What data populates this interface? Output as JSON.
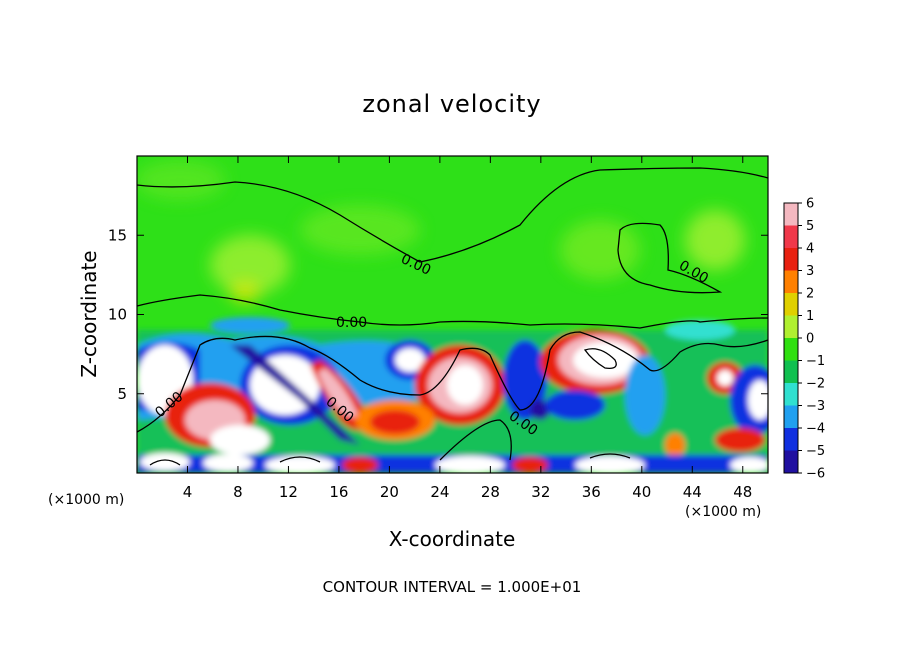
{
  "chart_data": {
    "type": "heatmap",
    "title": "zonal velocity",
    "xlabel": "X-coordinate",
    "ylabel": "Z-coordinate",
    "x_unit": "(×1000 m)",
    "x_unit_right": "(×1000 m)",
    "xlim": [
      0,
      50
    ],
    "ylim": [
      0,
      20
    ],
    "x_ticks": [
      4,
      8,
      12,
      16,
      20,
      24,
      28,
      32,
      36,
      40,
      44,
      48
    ],
    "y_ticks": [
      5,
      10,
      15
    ],
    "colorbar": {
      "ticks": [
        6,
        5,
        4,
        3,
        2,
        1,
        0,
        -1,
        -2,
        -3,
        -4,
        -5,
        -6
      ],
      "colors": [
        "#f4b8c0",
        "#f0384a",
        "#e82010",
        "#ff8000",
        "#e0d000",
        "#b0f030",
        "#30e010",
        "#10c050",
        "#30e0d0",
        "#20a0f0",
        "#1030e0",
        "#2010a0",
        "#7010a0"
      ]
    },
    "contour_labels": [
      "0.00",
      "0.00",
      "0.00",
      "0.00",
      "0.00",
      "0.00"
    ],
    "footer": "CONTOUR INTERVAL = 1.000E+01"
  }
}
